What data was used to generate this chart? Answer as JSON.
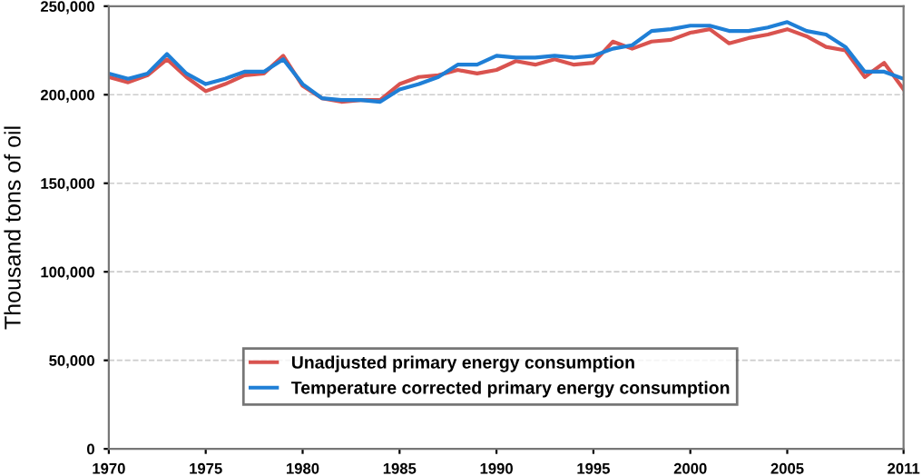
{
  "chart_data": {
    "type": "line",
    "ylabel": "Thousand tons of oil",
    "x": [
      1970,
      1971,
      1972,
      1973,
      1974,
      1975,
      1976,
      1977,
      1978,
      1979,
      1980,
      1981,
      1982,
      1983,
      1984,
      1985,
      1986,
      1987,
      1988,
      1989,
      1990,
      1991,
      1992,
      1993,
      1994,
      1995,
      1996,
      1997,
      1998,
      1999,
      2000,
      2001,
      2002,
      2003,
      2004,
      2005,
      2006,
      2007,
      2008,
      2009,
      2010,
      2011
    ],
    "series": [
      {
        "name": "Unadjusted primary energy consumption",
        "color": "#d9534f",
        "values": [
          210000,
          207000,
          211000,
          220000,
          210000,
          202000,
          206000,
          211000,
          212000,
          222000,
          205000,
          198000,
          196000,
          197000,
          197000,
          206000,
          210000,
          211000,
          214000,
          212000,
          214000,
          219000,
          217000,
          220000,
          217000,
          218000,
          230000,
          226000,
          230000,
          231000,
          235000,
          237000,
          229000,
          232000,
          234000,
          237000,
          233000,
          227000,
          225000,
          210000,
          218000,
          203000
        ]
      },
      {
        "name": "Temperature corrected primary energy consumption",
        "color": "#1f7fd6",
        "values": [
          212000,
          209000,
          212000,
          223000,
          212000,
          206000,
          209000,
          213000,
          213000,
          220000,
          206000,
          198000,
          197000,
          197000,
          196000,
          203000,
          206000,
          210000,
          217000,
          217000,
          222000,
          221000,
          221000,
          222000,
          221000,
          222000,
          226000,
          228000,
          236000,
          237000,
          239000,
          239000,
          236000,
          236000,
          238000,
          241000,
          236000,
          234000,
          227000,
          213000,
          213000,
          209000
        ]
      }
    ],
    "xlim": [
      1970,
      2011
    ],
    "xticks": [
      1970,
      1975,
      1980,
      1985,
      1990,
      1995,
      2000,
      2005,
      2011
    ],
    "ylim": [
      0,
      250000
    ],
    "yticks": [
      {
        "value": 0,
        "label": "0"
      },
      {
        "value": 50000,
        "label": "50,000"
      },
      {
        "value": 100000,
        "label": "100,000"
      },
      {
        "value": 150000,
        "label": "150,000"
      },
      {
        "value": 200000,
        "label": "200,000"
      },
      {
        "value": 250000,
        "label": "250,000"
      }
    ],
    "grid": "y",
    "legend": "bottom",
    "marker": "none",
    "line_style": "solid"
  }
}
